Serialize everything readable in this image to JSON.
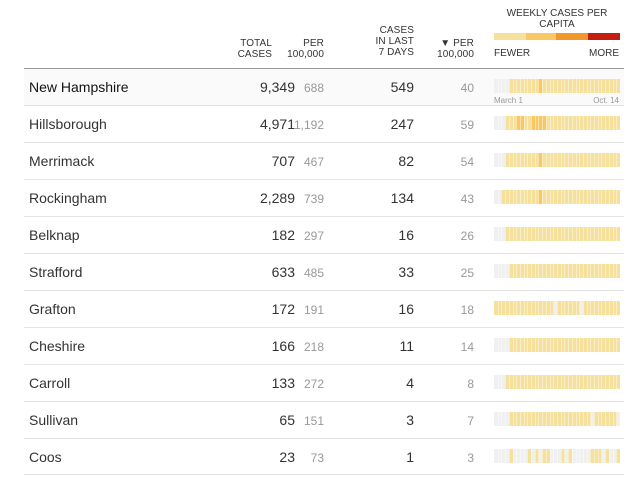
{
  "header": {
    "total_cases": [
      "TOTAL",
      "CASES"
    ],
    "per_100k": [
      "PER",
      "100,000"
    ],
    "last_7": [
      "CASES",
      "IN LAST",
      "7 DAYS"
    ],
    "per_100k_sorted": [
      "▼ PER",
      "100,000"
    ],
    "legend_title": "WEEKLY CASES PER CAPITA",
    "legend_fewer": "FEWER",
    "legend_more": "MORE",
    "axis_start": "March 1",
    "axis_end": "Oct. 14"
  },
  "colors": {
    "scale": [
      "#f5e09c",
      "#f9c864",
      "#f0982c",
      "#e95f1c",
      "#c41e10"
    ],
    "empty": "#f0f0f0"
  },
  "rows": [
    {
      "name": "New Hampshire",
      "total": "9,349",
      "per100k": "688",
      "last7": "549",
      "last7_per100k": "40",
      "weeks": "0000111111112111111111111111111111"
    },
    {
      "name": "Hillsborough",
      "total": "4,971",
      "per100k": "1,192",
      "last7": "247",
      "last7_per100k": "59",
      "weeks": "0001112211222211111111111111111111"
    },
    {
      "name": "Merrimack",
      "total": "707",
      "per100k": "467",
      "last7": "82",
      "last7_per100k": "54",
      "weeks": "0001111111112111111111111111111111"
    },
    {
      "name": "Rockingham",
      "total": "2,289",
      "per100k": "739",
      "last7": "134",
      "last7_per100k": "43",
      "weeks": "0011111111112111111111111111111111"
    },
    {
      "name": "Belknap",
      "total": "182",
      "per100k": "297",
      "last7": "16",
      "last7_per100k": "26",
      "weeks": "0001111111111111111111111111111111"
    },
    {
      "name": "Strafford",
      "total": "633",
      "per100k": "485",
      "last7": "33",
      "last7_per100k": "25",
      "weeks": "0000111111111111111111111111111111"
    },
    {
      "name": "Grafton",
      "total": "172",
      "per100k": "191",
      "last7": "16",
      "last7_per100k": "18",
      "weeks": "1111111111111111011111101111111111"
    },
    {
      "name": "Cheshire",
      "total": "166",
      "per100k": "218",
      "last7": "11",
      "last7_per100k": "14",
      "weeks": "0000111111111111111111111111111111"
    },
    {
      "name": "Carroll",
      "total": "133",
      "per100k": "272",
      "last7": "4",
      "last7_per100k": "8",
      "weeks": "0001111111111111111111111111111111"
    },
    {
      "name": "Sullivan",
      "total": "65",
      "per100k": "151",
      "last7": "3",
      "last7_per100k": "7",
      "weeks": "0000111111111111111111111101111110"
    },
    {
      "name": "Coos",
      "total": "23",
      "per100k": "73",
      "last7": "1",
      "last7_per100k": "3",
      "weeks": "0000100001010110001010000011101001"
    }
  ]
}
